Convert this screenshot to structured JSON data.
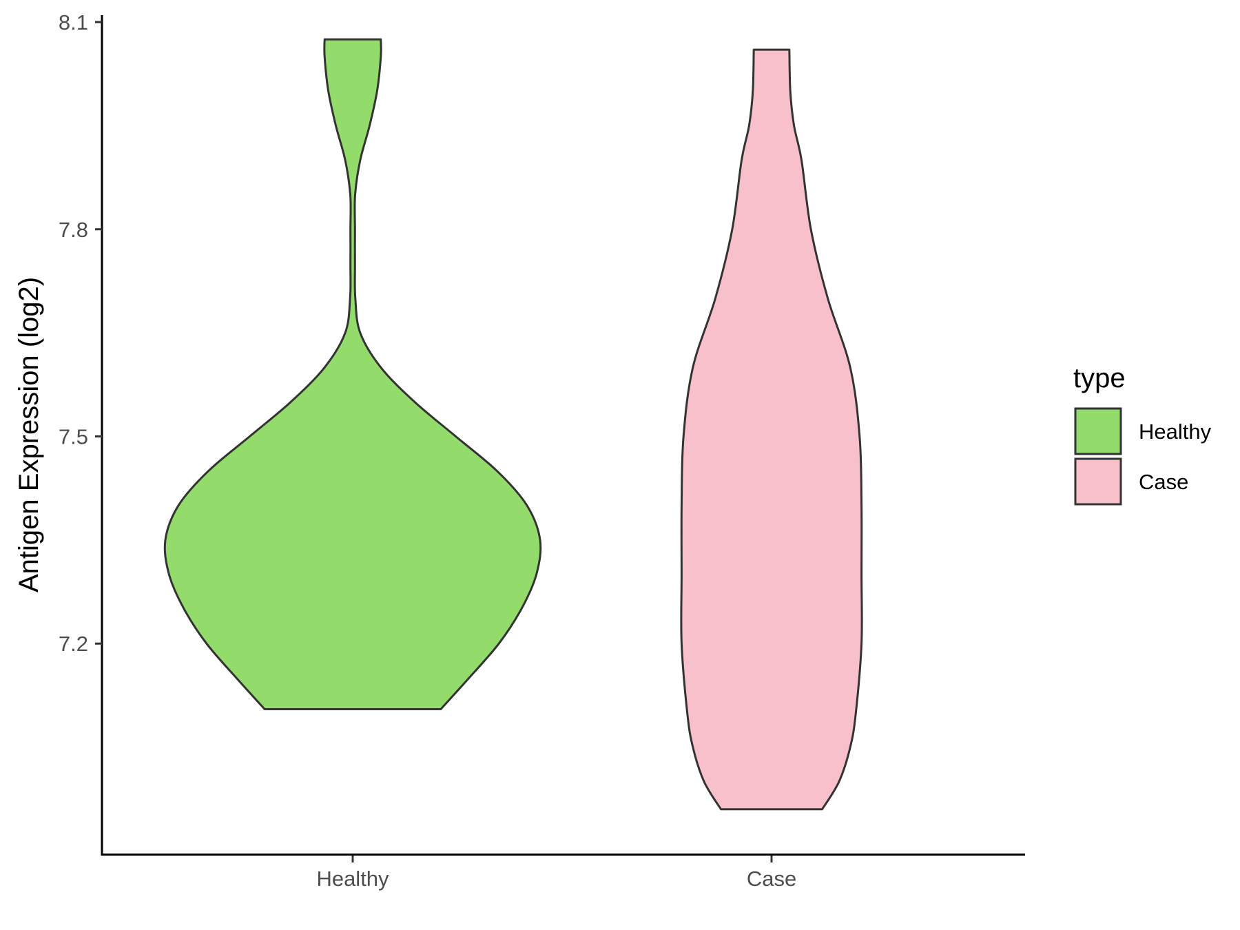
{
  "chart_data": {
    "type": "violin",
    "title": "",
    "xlabel": "",
    "ylabel": "Antigen Expression (log2)",
    "categories": [
      "Healthy",
      "Case"
    ],
    "y_ticks": [
      "7.2",
      "7.5",
      "7.8",
      "8.1"
    ],
    "ylim": [
      6.895,
      8.11
    ],
    "grid": false,
    "legend": {
      "title": "type",
      "position": "right",
      "entries": [
        {
          "label": "Healthy",
          "color": "#93dc6b"
        },
        {
          "label": "Case",
          "color": "#f7c0cb"
        }
      ]
    },
    "series": [
      {
        "name": "Healthy",
        "color": "#93dc6b",
        "min": 7.105,
        "max": 8.075,
        "profile": [
          [
            7.105,
            0.47
          ],
          [
            7.15,
            0.62
          ],
          [
            7.2,
            0.78
          ],
          [
            7.25,
            0.9
          ],
          [
            7.3,
            0.98
          ],
          [
            7.35,
            1.0
          ],
          [
            7.4,
            0.93
          ],
          [
            7.45,
            0.77
          ],
          [
            7.5,
            0.55
          ],
          [
            7.55,
            0.33
          ],
          [
            7.6,
            0.15
          ],
          [
            7.65,
            0.04
          ],
          [
            7.7,
            0.014
          ],
          [
            7.75,
            0.012
          ],
          [
            7.8,
            0.012
          ],
          [
            7.85,
            0.013
          ],
          [
            7.9,
            0.04
          ],
          [
            7.95,
            0.09
          ],
          [
            8.0,
            0.13
          ],
          [
            8.05,
            0.15
          ],
          [
            8.075,
            0.15
          ]
        ]
      },
      {
        "name": "Case",
        "color": "#f7c0cb",
        "min": 6.96,
        "max": 8.06,
        "profile": [
          [
            6.96,
            0.27
          ],
          [
            7.0,
            0.36
          ],
          [
            7.05,
            0.42
          ],
          [
            7.1,
            0.45
          ],
          [
            7.2,
            0.48
          ],
          [
            7.3,
            0.48
          ],
          [
            7.4,
            0.48
          ],
          [
            7.5,
            0.47
          ],
          [
            7.6,
            0.42
          ],
          [
            7.7,
            0.3
          ],
          [
            7.8,
            0.21
          ],
          [
            7.9,
            0.16
          ],
          [
            7.95,
            0.12
          ],
          [
            8.0,
            0.1
          ],
          [
            8.06,
            0.095
          ]
        ]
      }
    ]
  }
}
